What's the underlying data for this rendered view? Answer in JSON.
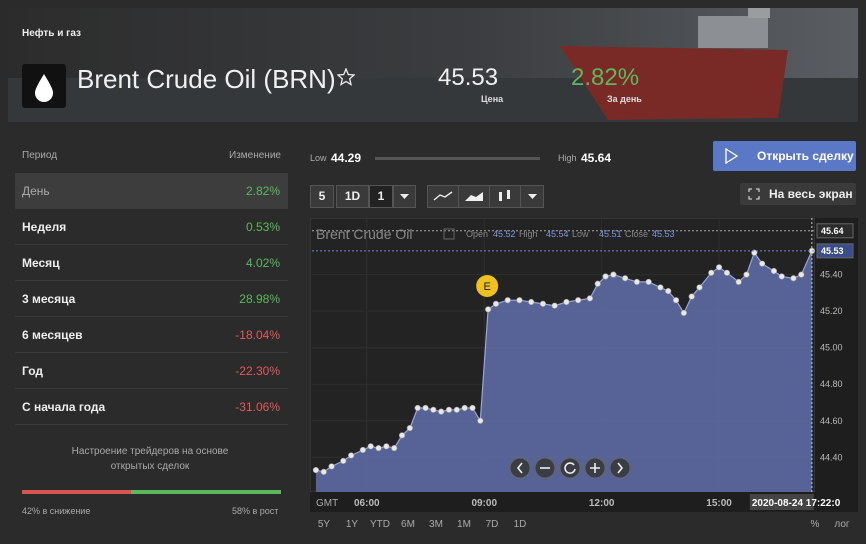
{
  "header": {
    "category": "Нефть и газ",
    "title": "Brent Crude Oil (BRN)",
    "price": "45.53",
    "price_label": "Цена",
    "change": "2.82%",
    "change_label": "За день"
  },
  "performance": {
    "columns": [
      "Период",
      "Изменение"
    ],
    "rows": [
      [
        "День",
        "2.82%"
      ],
      [
        "Неделя",
        "0.53%"
      ],
      [
        "Месяц",
        "4.02%"
      ],
      [
        "3 месяца",
        "28.98%"
      ],
      [
        "6 месяцев",
        "-18.04%"
      ],
      [
        "Год",
        "-22.30%"
      ],
      [
        "С начала года",
        "-31.06%"
      ]
    ],
    "selected": 0
  },
  "sentiment": {
    "text": [
      "Настроение трейдеров на основе",
      "открытых сделок"
    ],
    "down": 42,
    "up": 58,
    "down_label": "42% в снижение",
    "up_label": "58% в рост"
  },
  "toolbar": {
    "low_label": "Low",
    "low": "44.29",
    "high_label": "High",
    "high": "45.64",
    "trade_button": "Открыть сделку",
    "fullscreen_button": "На весь экран",
    "period_buttons": [
      "5",
      "1D"
    ],
    "interval": "1"
  },
  "chart_data": {
    "type": "area",
    "legend_title": "Brent Crude Oil",
    "ohlc": [
      [
        "Open",
        "45.52"
      ],
      [
        "High",
        "45.54"
      ],
      [
        "Low",
        "45.51"
      ],
      [
        "Close",
        "45.53"
      ]
    ],
    "x": [
      4.7,
      4.9,
      5.1,
      5.4,
      5.6,
      5.9,
      6.1,
      6.3,
      6.5,
      6.7,
      6.9,
      7.1,
      7.3,
      7.5,
      7.7,
      7.9,
      8.1,
      8.3,
      8.5,
      8.7,
      8.9,
      9.1,
      9.3,
      9.6,
      9.9,
      10.2,
      10.5,
      10.8,
      11.1,
      11.4,
      11.7,
      11.9,
      12.1,
      12.3,
      12.6,
      12.9,
      13.2,
      13.5,
      13.7,
      13.9,
      14.1,
      14.3,
      14.5,
      14.8,
      15.0,
      15.2,
      15.5,
      15.7,
      15.9,
      16.1,
      16.4,
      16.6,
      16.9,
      17.1,
      17.37
    ],
    "values": [
      44.33,
      44.32,
      44.35,
      44.38,
      44.41,
      44.44,
      44.46,
      44.45,
      44.46,
      44.45,
      44.52,
      44.56,
      44.67,
      44.67,
      44.66,
      44.65,
      44.66,
      44.66,
      44.67,
      44.67,
      44.6,
      45.21,
      45.24,
      45.26,
      45.26,
      45.25,
      45.24,
      45.23,
      45.25,
      45.26,
      45.27,
      45.35,
      45.39,
      45.4,
      45.38,
      45.36,
      45.36,
      45.33,
      45.31,
      45.26,
      45.19,
      45.28,
      45.33,
      45.41,
      45.44,
      45.41,
      45.36,
      45.4,
      45.52,
      45.46,
      45.42,
      45.39,
      45.38,
      45.4,
      45.53
    ],
    "color": "#5d6aa3",
    "xlim": [
      4.6,
      17.45
    ],
    "ylim": [
      44.21,
      45.71
    ],
    "xticks": [
      {
        "value": 6,
        "label": "06:00"
      },
      {
        "value": 9,
        "label": "09:00"
      },
      {
        "value": 12,
        "label": "12:00"
      },
      {
        "value": 15,
        "label": "15:00"
      }
    ],
    "yticks": [
      {
        "value": 44.4,
        "label": "44.40"
      },
      {
        "value": 44.6,
        "label": "44.60"
      },
      {
        "value": 44.8,
        "label": "44.80"
      },
      {
        "value": 45,
        "label": "45.00"
      },
      {
        "value": 45.2,
        "label": "45.20"
      },
      {
        "value": 45.4,
        "label": "45.40"
      }
    ],
    "high_line": 45.64,
    "last_line": 45.53,
    "event": {
      "x": 9.05,
      "label": "E"
    },
    "timezone": "GMT",
    "cursor_x": 17.37,
    "cursor_label": "2020-08-24 17:22:0",
    "ranges": [
      "5Y",
      "1Y",
      "YTD",
      "6M",
      "3M",
      "1M",
      "7D",
      "1D"
    ],
    "percent_label": "%",
    "log_label": "лог"
  }
}
